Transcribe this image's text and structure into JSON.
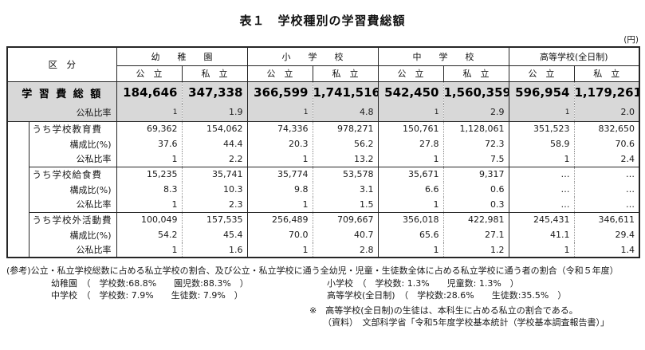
{
  "page": {
    "title": "表１　学校種別の学習費総額",
    "unit_label": "(円)"
  },
  "table": {
    "corner_label": "区　分",
    "groups": [
      "幼　　稚　　園",
      "小　　学　　校",
      "中　　学　　校",
      "高等学校(全日制)"
    ],
    "col_headers": [
      "公　立",
      "私　立",
      "公　立",
      "私　立",
      "公　立",
      "私　立",
      "公　立",
      "私　立"
    ],
    "total_row": {
      "label": "学 習 費 総 額",
      "values": [
        "184,646",
        "347,338",
        "366,599",
        "1,741,516",
        "542,450",
        "1,560,359",
        "596,954",
        "1,179,261"
      ]
    },
    "total_ratio_row": {
      "label": "公私比率",
      "values": [
        "1",
        "1.9",
        "1",
        "4.8",
        "1",
        "2.9",
        "1",
        "2.0"
      ]
    },
    "row_labels": {
      "composition": "構成比(%)",
      "ratio": "公私比率"
    },
    "sections": [
      {
        "label": "うち学校教育費",
        "amounts": [
          "69,362",
          "154,062",
          "74,336",
          "978,271",
          "150,761",
          "1,128,061",
          "351,523",
          "832,650"
        ],
        "composition": [
          "37.6",
          "44.4",
          "20.3",
          "56.2",
          "27.8",
          "72.3",
          "58.9",
          "70.6"
        ],
        "ratio": [
          "1",
          "2.2",
          "1",
          "13.2",
          "1",
          "7.5",
          "1",
          "2.4"
        ]
      },
      {
        "label": "うち学校給食費",
        "amounts": [
          "15,235",
          "35,741",
          "35,774",
          "53,578",
          "35,671",
          "9,317",
          "…",
          "…"
        ],
        "composition": [
          "8.3",
          "10.3",
          "9.8",
          "3.1",
          "6.6",
          "0.6",
          "…",
          "…"
        ],
        "ratio": [
          "1",
          "2.3",
          "1",
          "1.5",
          "1",
          "0.3",
          "…",
          "…"
        ]
      },
      {
        "label": "うち学校外活動費",
        "amounts": [
          "100,049",
          "157,535",
          "256,489",
          "709,667",
          "356,018",
          "422,981",
          "245,431",
          "346,611"
        ],
        "composition": [
          "54.2",
          "45.4",
          "70.0",
          "40.7",
          "65.6",
          "27.1",
          "41.1",
          "29.4"
        ],
        "ratio": [
          "1",
          "1.6",
          "1",
          "2.8",
          "1",
          "1.2",
          "1",
          "1.4"
        ]
      }
    ]
  },
  "footnotes": {
    "reference": "(参考)公立・私立学校総数に占める私立学校の割合、及び公立・私立学校に通う全幼児・児童・生徒数全体に占める私立学校に通う者の割合（令和５年度）",
    "line2a": "幼稚園　（　学校数:68.8%　　園児数:88.3%　）",
    "line2b": "小学校　（　学校数: 1.3%　　児童数: 1.3%　）",
    "line3a": "中学校　（　学校数: 7.9%　　生徒数: 7.9%　）",
    "line3b": "高等学校(全日制)　（　学校数:28.6%　　生徒数:35.5%　）",
    "note": "※　高等学校(全日制)の生徒は、本科生に占める私立の割合である。",
    "source": "（資料）　文部科学省「令和5年度学校基本統計（学校基本調査報告書）」"
  }
}
